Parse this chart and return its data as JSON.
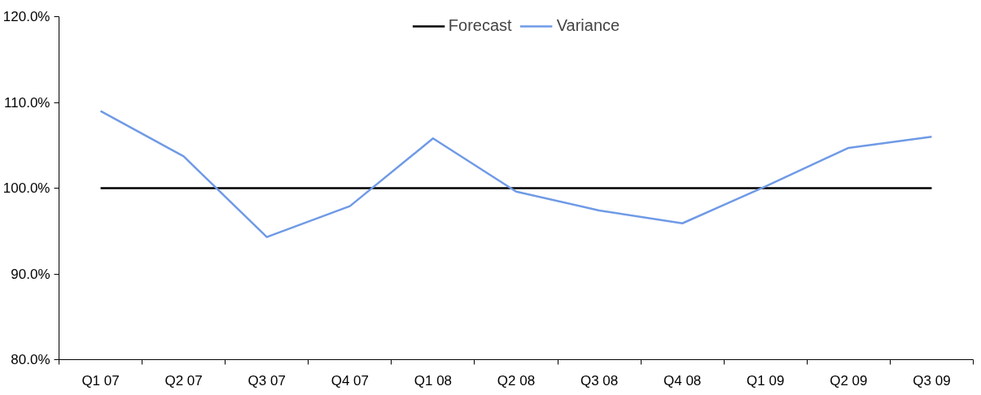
{
  "chart_data": {
    "type": "line",
    "categories": [
      "Q1 07",
      "Q2 07",
      "Q3 07",
      "Q4 07",
      "Q1 08",
      "Q2 08",
      "Q3 08",
      "Q4 08",
      "Q1 09",
      "Q2 09",
      "Q3 09"
    ],
    "series": [
      {
        "name": "Forecast",
        "color": "#000000",
        "values": [
          100,
          100,
          100,
          100,
          100,
          100,
          100,
          100,
          100,
          100,
          100
        ]
      },
      {
        "name": "Variance",
        "color": "#6f9ae6",
        "values": [
          109.0,
          103.7,
          94.3,
          97.9,
          105.8,
          99.6,
          97.4,
          95.9,
          100.2,
          104.7,
          106.0
        ]
      }
    ],
    "ylim": [
      80,
      120
    ],
    "yticks": [
      {
        "value": 80,
        "label": "80.0%"
      },
      {
        "value": 90,
        "label": "90.0%"
      },
      {
        "value": 100,
        "label": "100.0%"
      },
      {
        "value": 110,
        "label": "110.0%"
      },
      {
        "value": 120,
        "label": "120.0%"
      }
    ],
    "grid": false,
    "legend": "top",
    "marker": "none",
    "line_style": "solid"
  }
}
